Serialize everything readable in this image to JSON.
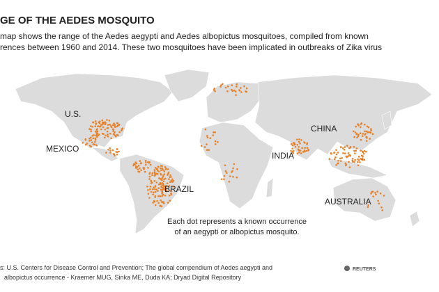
{
  "header": {
    "title": "GE OF THE AEDES MOSQUITO",
    "subtitle_lines": [
      "map shows the range of the Aedes aegypti and Aedes albopictus mosquitoes, compiled from known",
      "rences between 1960 and 2014. These two mosquitoes have been implicated in outbreaks of Zika virus"
    ]
  },
  "map": {
    "labels": [
      "U.S.",
      "MEXICO",
      "BRAZIL",
      "CHINA",
      "INDIA",
      "AUSTRALIA"
    ],
    "note_lines": [
      "Each dot represents a known occurrence",
      "of an aegypti or albopictus mosquito."
    ]
  },
  "footer": {
    "source_lines": [
      "s: U.S. Centers for Disease Control and Prevention; The global compendium of Aedes aegypti and",
      "albopictus occurrence - Kraemer MUG, Sinka ME, Duda KA; Dryad Digital Repository"
    ],
    "logo": "REUTERS"
  }
}
